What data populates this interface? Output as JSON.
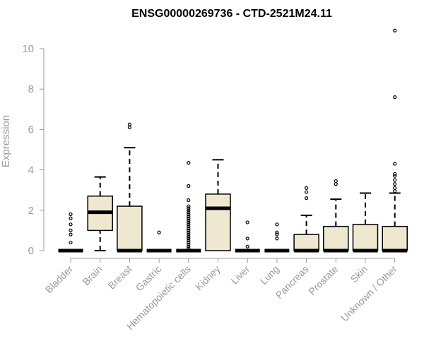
{
  "chart_data": {
    "type": "box",
    "title": "ENSG00000269736 - CTD-2521M24.11",
    "ylabel": "Expression",
    "xlabel": "",
    "ylim": [
      0,
      10.5
    ],
    "yticks": [
      0,
      2,
      4,
      6,
      8,
      10
    ],
    "grid": false,
    "legend": "none",
    "box_fill": "#efe8d0",
    "categories": [
      "Bladder",
      "Brain",
      "Breast",
      "Gastric",
      "Hematopoietic cells",
      "Kidney",
      "Liver",
      "Lung",
      "Pancreas",
      "Prostate",
      "Skin",
      "Unknown / Other"
    ],
    "boxes": [
      {
        "q1": 0,
        "median": 0,
        "q3": 0,
        "whisker_low": 0,
        "whisker_high": 0,
        "outliers": [
          0.4,
          0.8,
          1.0,
          1.3,
          1.6,
          1.8
        ]
      },
      {
        "q1": 1.0,
        "median": 1.9,
        "q3": 2.7,
        "whisker_low": 0,
        "whisker_high": 3.65,
        "outliers": []
      },
      {
        "q1": 0,
        "median": 0,
        "q3": 2.2,
        "whisker_low": 0,
        "whisker_high": 5.1,
        "outliers": [
          6.1,
          6.25
        ]
      },
      {
        "q1": 0,
        "median": 0,
        "q3": 0,
        "whisker_low": 0,
        "whisker_high": 0,
        "outliers": [
          0.9
        ]
      },
      {
        "q1": 0,
        "median": 0,
        "q3": 0,
        "whisker_low": 0,
        "whisker_high": 0,
        "outliers": [
          0.1,
          0.2,
          0.3,
          0.4,
          0.5,
          0.6,
          0.7,
          0.8,
          0.9,
          1.0,
          1.1,
          1.2,
          1.3,
          1.4,
          1.5,
          1.6,
          1.7,
          1.8,
          1.9,
          2.0,
          2.1,
          2.2,
          2.5,
          3.2,
          4.35
        ]
      },
      {
        "q1": 0,
        "median": 2.1,
        "q3": 2.8,
        "whisker_low": 0,
        "whisker_high": 4.5,
        "outliers": []
      },
      {
        "q1": 0,
        "median": 0,
        "q3": 0,
        "whisker_low": 0,
        "whisker_high": 0,
        "outliers": [
          0.2,
          0.6,
          1.4
        ]
      },
      {
        "q1": 0,
        "median": 0,
        "q3": 0,
        "whisker_low": 0,
        "whisker_high": 0,
        "outliers": [
          0.6,
          0.8,
          0.9,
          1.3
        ]
      },
      {
        "q1": 0,
        "median": 0,
        "q3": 0.8,
        "whisker_low": 0,
        "whisker_high": 1.75,
        "outliers": [
          2.6,
          2.9,
          3.1
        ]
      },
      {
        "q1": 0,
        "median": 0,
        "q3": 1.2,
        "whisker_low": 0,
        "whisker_high": 2.55,
        "outliers": [
          3.3,
          3.45
        ]
      },
      {
        "q1": 0,
        "median": 0,
        "q3": 1.3,
        "whisker_low": 0,
        "whisker_high": 2.85,
        "outliers": []
      },
      {
        "q1": 0,
        "median": 0,
        "q3": 1.2,
        "whisker_low": 0,
        "whisker_high": 2.85,
        "outliers": [
          2.95,
          3.1,
          3.3,
          3.5,
          3.7,
          3.8,
          4.3,
          7.6,
          10.9
        ]
      }
    ]
  }
}
